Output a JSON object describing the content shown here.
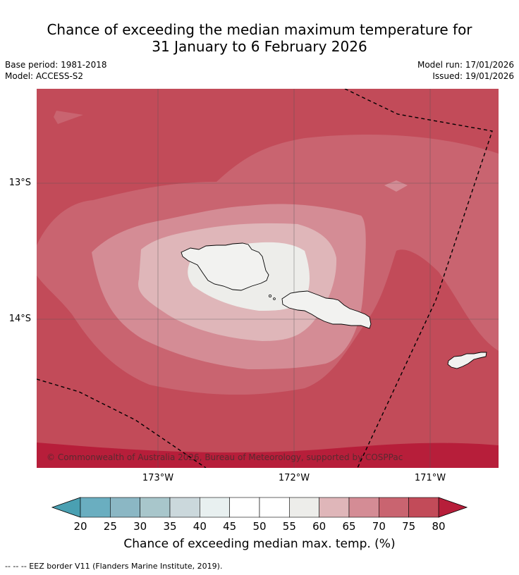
{
  "title_line1": "Chance of exceeding the median maximum temperature for",
  "title_line2": "31 January to 6 February 2026",
  "meta": {
    "base_period": "Base period: 1981-2018",
    "model": "Model: ACCESS-S2",
    "model_run": "Model run: 17/01/2026",
    "issued": "Issued: 19/01/2026"
  },
  "map": {
    "lat_labels": [
      "13°S",
      "14°S"
    ],
    "lon_labels": [
      "173°W",
      "172°W",
      "171°W"
    ],
    "copyright": "© Commonwealth of Australia 2026, Bureau of Meteorology, supported by COSPPac"
  },
  "colorbar": {
    "title": "Chance of exceeding median max. temp. (%)",
    "ticks": [
      "20",
      "25",
      "30",
      "35",
      "40",
      "45",
      "50",
      "55",
      "60",
      "65",
      "70",
      "75",
      "80"
    ],
    "colors": [
      "#6aaec0",
      "#8bb7c4",
      "#a8c6cb",
      "#cbd8dc",
      "#e8f0f0",
      "#ffffff",
      "#ffffff",
      "#ededea",
      "#dfb6b9",
      "#d48c95",
      "#c96470",
      "#c24b59"
    ],
    "under_color": "#4aa0b2",
    "over_color": "#b71e3a"
  },
  "footer": "--  --  -- EEZ border V11 (Flanders Marine Institute, 2019)."
}
